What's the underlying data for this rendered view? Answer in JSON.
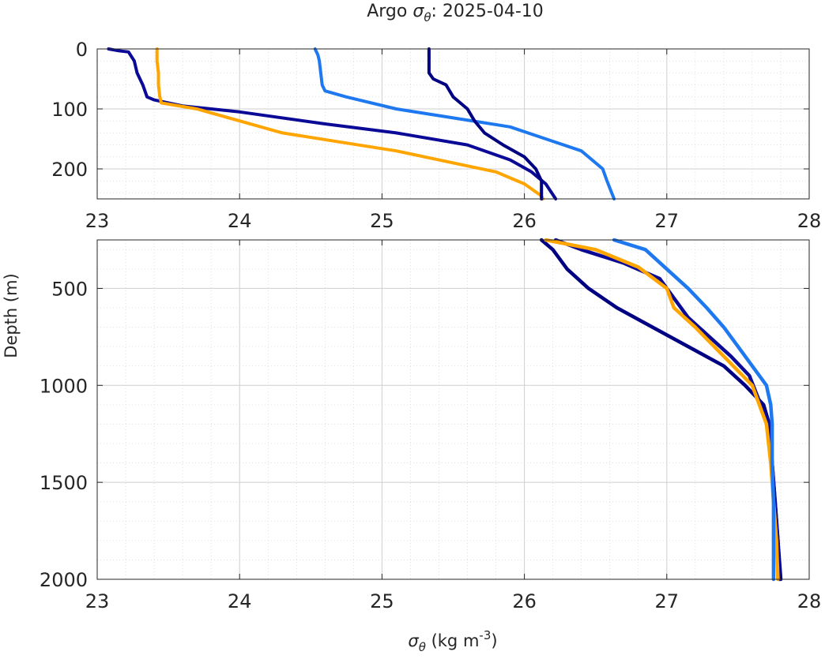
{
  "figure": {
    "title_prefix": "Argo ",
    "title_symbol": "σ",
    "title_symbol_sub": "θ",
    "title_suffix": ": 2025-04-10",
    "xlabel_symbol": "σ",
    "xlabel_symbol_sub": "θ",
    "xlabel_units_prefix": " (kg m",
    "xlabel_units_exp": "-3",
    "xlabel_units_suffix": ")",
    "ylabel": "Depth (m)",
    "colors": {
      "orange": "#FFA500",
      "lightblue": "#1E78F0",
      "navy_a": "#0A0A96",
      "navy_b": "#000082",
      "grid": "#d9d9d9",
      "axes": "#262626"
    }
  },
  "chart_data": [
    {
      "type": "line",
      "panel": "top",
      "xlim": [
        23,
        28
      ],
      "ylim": [
        0,
        250
      ],
      "y_reversed": true,
      "xticks": [
        23,
        24,
        25,
        26,
        27,
        28
      ],
      "yticks": [
        0,
        100,
        200
      ],
      "grid": "major and minor, dotted",
      "series": [
        {
          "color_key": "navy_a",
          "values": [
            [
              23.08,
              0
            ],
            [
              23.15,
              3
            ],
            [
              23.22,
              5
            ],
            [
              23.26,
              20
            ],
            [
              23.28,
              40
            ],
            [
              23.32,
              60
            ],
            [
              23.35,
              80
            ],
            [
              23.4,
              85
            ],
            [
              23.6,
              95
            ],
            [
              24.0,
              105
            ],
            [
              24.6,
              125
            ],
            [
              25.1,
              140
            ],
            [
              25.6,
              160
            ],
            [
              25.9,
              185
            ],
            [
              26.05,
              205
            ],
            [
              26.15,
              225
            ],
            [
              26.22,
              250
            ]
          ]
        },
        {
          "color_key": "orange",
          "values": [
            [
              23.42,
              0
            ],
            [
              23.42,
              20
            ],
            [
              23.43,
              40
            ],
            [
              23.43,
              60
            ],
            [
              23.44,
              80
            ],
            [
              23.45,
              90
            ],
            [
              23.7,
              100
            ],
            [
              24.0,
              120
            ],
            [
              24.3,
              140
            ],
            [
              24.7,
              155
            ],
            [
              25.1,
              170
            ],
            [
              25.5,
              190
            ],
            [
              25.8,
              205
            ],
            [
              26.0,
              225
            ],
            [
              26.12,
              245
            ],
            [
              26.13,
              250
            ]
          ]
        },
        {
          "color_key": "lightblue",
          "values": [
            [
              24.53,
              0
            ],
            [
              24.55,
              10
            ],
            [
              24.56,
              20
            ],
            [
              24.57,
              40
            ],
            [
              24.58,
              60
            ],
            [
              24.6,
              70
            ],
            [
              24.75,
              80
            ],
            [
              25.1,
              100
            ],
            [
              25.5,
              115
            ],
            [
              25.9,
              130
            ],
            [
              26.15,
              150
            ],
            [
              26.4,
              170
            ],
            [
              26.55,
              200
            ],
            [
              26.58,
              220
            ],
            [
              26.63,
              250
            ]
          ]
        },
        {
          "color_key": "navy_b",
          "values": [
            [
              25.33,
              0
            ],
            [
              25.33,
              20
            ],
            [
              25.33,
              40
            ],
            [
              25.36,
              50
            ],
            [
              25.45,
              60
            ],
            [
              25.5,
              80
            ],
            [
              25.6,
              100
            ],
            [
              25.65,
              120
            ],
            [
              25.72,
              140
            ],
            [
              25.85,
              160
            ],
            [
              26.0,
              180
            ],
            [
              26.08,
              200
            ],
            [
              26.12,
              220
            ],
            [
              26.12,
              250
            ]
          ]
        }
      ]
    },
    {
      "type": "line",
      "panel": "bottom",
      "xlim": [
        23,
        28
      ],
      "ylim": [
        250,
        2000
      ],
      "y_reversed": true,
      "xticks": [
        23,
        24,
        25,
        26,
        27,
        28
      ],
      "yticks": [
        500,
        1000,
        1500,
        2000
      ],
      "grid": "major and minor, dotted",
      "series": [
        {
          "color_key": "navy_b",
          "values": [
            [
              26.12,
              250
            ],
            [
              26.2,
              300
            ],
            [
              26.3,
              400
            ],
            [
              26.45,
              500
            ],
            [
              26.65,
              600
            ],
            [
              26.9,
              700
            ],
            [
              27.15,
              800
            ],
            [
              27.4,
              900
            ],
            [
              27.55,
              1000
            ],
            [
              27.68,
              1100
            ],
            [
              27.72,
              1200
            ],
            [
              27.74,
              1400
            ],
            [
              27.76,
              1600
            ],
            [
              27.78,
              1800
            ],
            [
              27.8,
              2000
            ]
          ]
        },
        {
          "color_key": "navy_a",
          "values": [
            [
              26.22,
              250
            ],
            [
              26.4,
              300
            ],
            [
              26.7,
              370
            ],
            [
              26.95,
              450
            ],
            [
              27.05,
              550
            ],
            [
              27.15,
              650
            ],
            [
              27.3,
              750
            ],
            [
              27.45,
              850
            ],
            [
              27.58,
              950
            ],
            [
              27.66,
              1100
            ],
            [
              27.72,
              1200
            ],
            [
              27.74,
              1400
            ],
            [
              27.76,
              1600
            ],
            [
              27.78,
              1800
            ],
            [
              27.79,
              2000
            ]
          ]
        },
        {
          "color_key": "orange",
          "values": [
            [
              26.15,
              250
            ],
            [
              26.5,
              300
            ],
            [
              26.8,
              390
            ],
            [
              27.0,
              500
            ],
            [
              27.05,
              600
            ],
            [
              27.2,
              700
            ],
            [
              27.4,
              850
            ],
            [
              27.6,
              1000
            ],
            [
              27.7,
              1200
            ],
            [
              27.73,
              1400
            ],
            [
              27.75,
              1600
            ],
            [
              27.77,
              1800
            ],
            [
              27.78,
              2000
            ]
          ]
        },
        {
          "color_key": "lightblue",
          "values": [
            [
              26.63,
              250
            ],
            [
              26.85,
              300
            ],
            [
              27.0,
              400
            ],
            [
              27.15,
              500
            ],
            [
              27.28,
              600
            ],
            [
              27.4,
              700
            ],
            [
              27.5,
              800
            ],
            [
              27.6,
              900
            ],
            [
              27.7,
              1000
            ],
            [
              27.73,
              1100
            ],
            [
              27.74,
              1200
            ],
            [
              27.74,
              1400
            ],
            [
              27.75,
              1600
            ],
            [
              27.75,
              1800
            ],
            [
              27.75,
              2000
            ]
          ]
        }
      ]
    }
  ]
}
